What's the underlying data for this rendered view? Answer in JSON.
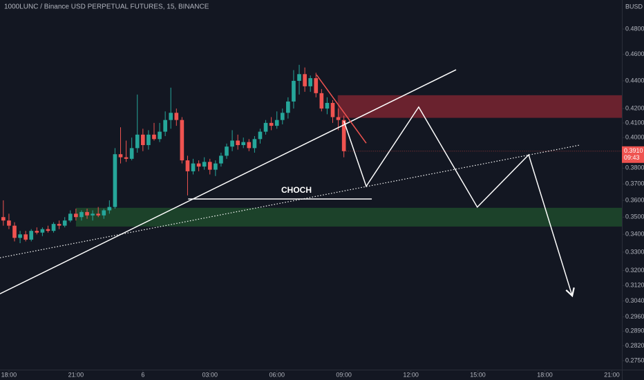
{
  "chart_data": {
    "type": "candlestick",
    "title": "1000LUNC / Binance USD PERPETUAL FUTURES, 15, BINANCE",
    "y_axis_label": "BUSD",
    "log_scale": true,
    "grid": false,
    "up_color": "#26a69a",
    "down_color": "#ef5350",
    "xlim": [
      -1.6,
      109.8
    ],
    "ylim": [
      0.2709,
      0.504
    ],
    "xticks": [
      {
        "value": 0,
        "label": "18:00"
      },
      {
        "value": 12,
        "label": "21:00"
      },
      {
        "value": 24,
        "label": "6"
      },
      {
        "value": 36,
        "label": "03:00"
      },
      {
        "value": 48,
        "label": "06:00"
      },
      {
        "value": 60,
        "label": "09:00"
      },
      {
        "value": 72,
        "label": "12:00"
      },
      {
        "value": 84,
        "label": "15:00"
      },
      {
        "value": 96,
        "label": "18:00"
      },
      {
        "value": 108,
        "label": "21:00"
      }
    ],
    "yticks": [
      {
        "value": 0.275,
        "label": "0.2750"
      },
      {
        "value": 0.282,
        "label": "0.2820"
      },
      {
        "value": 0.289,
        "label": "0.2890"
      },
      {
        "value": 0.296,
        "label": "0.2960"
      },
      {
        "value": 0.304,
        "label": "0.3040"
      },
      {
        "value": 0.312,
        "label": "0.3120"
      },
      {
        "value": 0.32,
        "label": "0.3200"
      },
      {
        "value": 0.33,
        "label": "0.3300"
      },
      {
        "value": 0.34,
        "label": "0.3400"
      },
      {
        "value": 0.35,
        "label": "0.3500"
      },
      {
        "value": 0.36,
        "label": "0.3600"
      },
      {
        "value": 0.37,
        "label": "0.3700"
      },
      {
        "value": 0.38,
        "label": "0.3800"
      },
      {
        "value": 0.4,
        "label": "0.4000"
      },
      {
        "value": 0.41,
        "label": "0.4100"
      },
      {
        "value": 0.42,
        "label": "0.4200"
      },
      {
        "value": 0.44,
        "label": "0.4400"
      },
      {
        "value": 0.46,
        "label": "0.4600"
      },
      {
        "value": 0.48,
        "label": "0.4800"
      }
    ],
    "x": [
      -1,
      0,
      1,
      2,
      3,
      4,
      5,
      6,
      7,
      8,
      9,
      10,
      11,
      12,
      13,
      14,
      15,
      16,
      17,
      18,
      19,
      20,
      21,
      22,
      23,
      24,
      25,
      26,
      27,
      28,
      29,
      30,
      31,
      32,
      33,
      34,
      35,
      36,
      37,
      38,
      39,
      40,
      41,
      42,
      43,
      44,
      45,
      46,
      47,
      48,
      49,
      50,
      51,
      52,
      53,
      54,
      55,
      56,
      57,
      58,
      59,
      60
    ],
    "open": [
      0.35,
      0.348,
      0.345,
      0.338,
      0.34,
      0.337,
      0.342,
      0.341,
      0.343,
      0.342,
      0.346,
      0.345,
      0.348,
      0.352,
      0.35,
      0.353,
      0.351,
      0.352,
      0.351,
      0.354,
      0.356,
      0.389,
      0.387,
      0.386,
      0.393,
      0.402,
      0.395,
      0.402,
      0.399,
      0.404,
      0.412,
      0.417,
      0.412,
      0.385,
      0.378,
      0.383,
      0.381,
      0.384,
      0.379,
      0.383,
      0.388,
      0.394,
      0.398,
      0.395,
      0.397,
      0.393,
      0.399,
      0.404,
      0.41,
      0.408,
      0.412,
      0.417,
      0.425,
      0.44,
      0.445,
      0.436,
      0.442,
      0.431,
      0.42,
      0.424,
      0.414,
      0.412
    ],
    "high": [
      0.36,
      0.352,
      0.347,
      0.342,
      0.342,
      0.343,
      0.344,
      0.344,
      0.345,
      0.347,
      0.348,
      0.35,
      0.354,
      0.355,
      0.354,
      0.355,
      0.354,
      0.356,
      0.355,
      0.36,
      0.393,
      0.407,
      0.398,
      0.4,
      0.43,
      0.406,
      0.405,
      0.41,
      0.41,
      0.418,
      0.435,
      0.42,
      0.414,
      0.388,
      0.386,
      0.385,
      0.387,
      0.386,
      0.385,
      0.39,
      0.396,
      0.405,
      0.402,
      0.4,
      0.399,
      0.401,
      0.406,
      0.412,
      0.414,
      0.418,
      0.42,
      0.428,
      0.448,
      0.452,
      0.45,
      0.444,
      0.446,
      0.434,
      0.428,
      0.426,
      0.42,
      0.415
    ],
    "low": [
      0.345,
      0.343,
      0.336,
      0.335,
      0.336,
      0.336,
      0.34,
      0.339,
      0.341,
      0.341,
      0.343,
      0.344,
      0.347,
      0.348,
      0.348,
      0.349,
      0.348,
      0.35,
      0.349,
      0.352,
      0.355,
      0.383,
      0.384,
      0.385,
      0.39,
      0.391,
      0.392,
      0.398,
      0.397,
      0.401,
      0.406,
      0.408,
      0.383,
      0.363,
      0.376,
      0.378,
      0.379,
      0.376,
      0.375,
      0.381,
      0.386,
      0.391,
      0.392,
      0.393,
      0.391,
      0.39,
      0.396,
      0.402,
      0.405,
      0.406,
      0.409,
      0.413,
      0.42,
      0.43,
      0.432,
      0.432,
      0.428,
      0.418,
      0.416,
      0.41,
      0.405,
      0.387
    ],
    "close": [
      0.348,
      0.345,
      0.338,
      0.34,
      0.337,
      0.342,
      0.341,
      0.343,
      0.342,
      0.346,
      0.345,
      0.348,
      0.352,
      0.35,
      0.353,
      0.351,
      0.352,
      0.351,
      0.354,
      0.356,
      0.389,
      0.387,
      0.386,
      0.393,
      0.402,
      0.395,
      0.402,
      0.399,
      0.404,
      0.412,
      0.417,
      0.412,
      0.385,
      0.378,
      0.383,
      0.381,
      0.384,
      0.379,
      0.383,
      0.388,
      0.394,
      0.398,
      0.395,
      0.397,
      0.393,
      0.399,
      0.404,
      0.41,
      0.408,
      0.412,
      0.417,
      0.425,
      0.44,
      0.445,
      0.436,
      0.442,
      0.431,
      0.42,
      0.424,
      0.414,
      0.412,
      0.391
    ],
    "last_price": {
      "value": 0.391,
      "label": "0.3910"
    },
    "countdown": "09:43",
    "zones": [
      {
        "color": "#7a2430",
        "x": [
          58.9,
          109.8
        ],
        "prices": [
          0.4135,
          0.4295
        ]
      },
      {
        "color": "#1e4a2c",
        "x": [
          12,
          109.8
        ],
        "prices": [
          0.3445,
          0.3555
        ]
      }
    ],
    "lines": [
      {
        "color": "#ffffff",
        "style": "solid",
        "x": [
          -1.6,
          80.1
        ],
        "prices": [
          0.3077,
          0.4483
        ]
      },
      {
        "color": "#ffffff",
        "style": "dotted",
        "x": [
          -1.6,
          102.1
        ],
        "prices": [
          0.3269,
          0.3949
        ]
      },
      {
        "color": "#ef5350",
        "style": "solid",
        "x": [
          55.1,
          64.0
        ],
        "prices": [
          0.4445,
          0.3963
        ]
      },
      {
        "color": "#ffffff",
        "style": "solid",
        "x": [
          32.1,
          65.0
        ],
        "prices": [
          0.3608,
          0.3608
        ]
      },
      {
        "color": "#ffffff",
        "style": "arrow",
        "x": [
          60.0,
          64.0,
          73.4,
          83.9,
          93.1,
          100.9
        ],
        "prices": [
          0.4113,
          0.3686,
          0.4211,
          0.3559,
          0.3886,
          0.3067
        ]
      }
    ],
    "annotation": {
      "text": "CHOCH",
      "x": 51.5,
      "price": 0.366
    }
  }
}
